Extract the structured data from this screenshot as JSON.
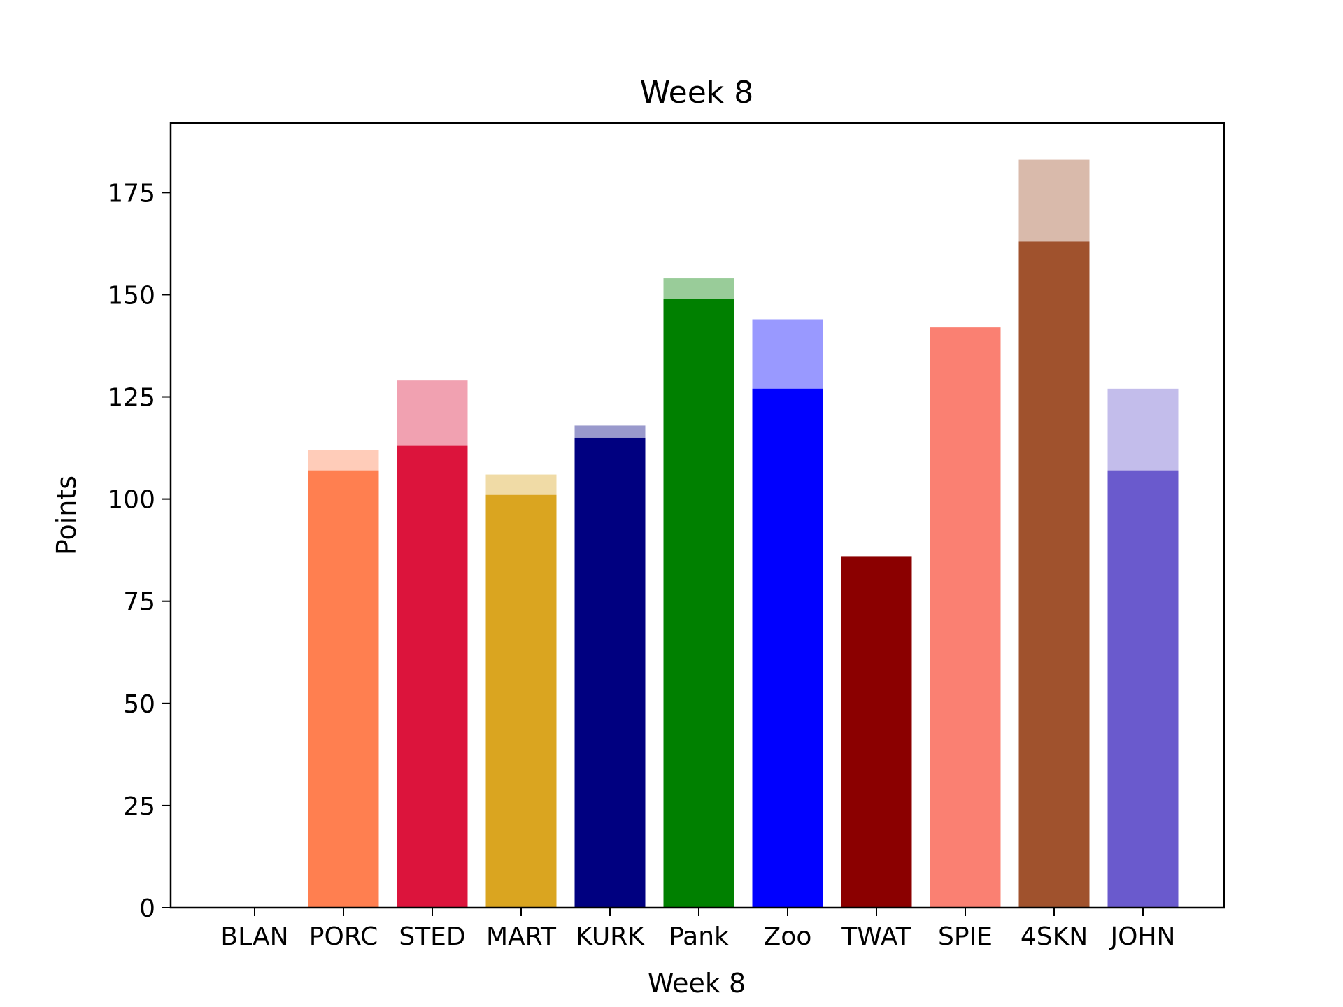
{
  "chart_data": {
    "type": "bar",
    "title": "Week 8",
    "xlabel": "Week 8",
    "ylabel": "Points",
    "ylim": [
      0,
      192
    ],
    "yticks": [
      0,
      25,
      50,
      75,
      100,
      125,
      150,
      175
    ],
    "categories": [
      "BLAN",
      "PORC",
      "STED",
      "MART",
      "KURK",
      "Pank",
      "Zoo",
      "TWAT",
      "SPIE",
      "4SKN",
      "JOHN"
    ],
    "series": [
      {
        "values": [
          0,
          107,
          113,
          101,
          115,
          149,
          127,
          86,
          142,
          163,
          107
        ]
      },
      {
        "values": [
          0,
          112,
          129,
          106,
          118,
          154,
          144,
          86,
          142,
          183,
          127
        ]
      }
    ],
    "colors": [
      "#ffffff",
      "#ff7f50",
      "#dc143c",
      "#daa520",
      "#000080",
      "#008000",
      "#0000ff",
      "#8b0000",
      "#fa8072",
      "#a0522d",
      "#6a5acd"
    ],
    "grid": false,
    "legend": "none"
  }
}
